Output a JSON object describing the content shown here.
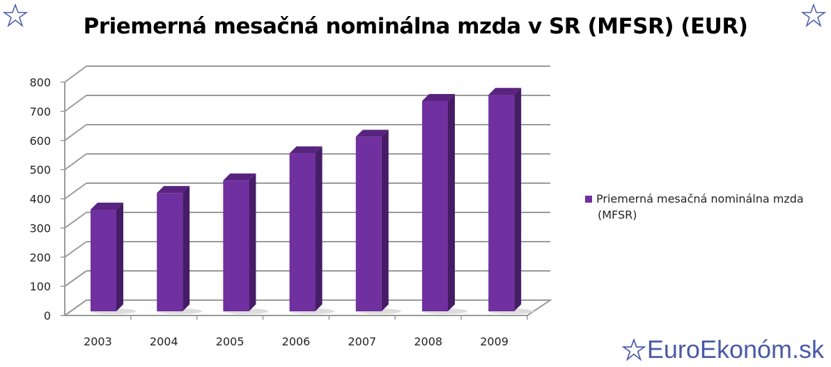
{
  "chart_data": {
    "type": "bar",
    "title": "Priemerná mesačná nominálna mzda v SR (MFSR) (EUR)",
    "categories": [
      "2003",
      "2004",
      "2005",
      "2006",
      "2007",
      "2008",
      "2009"
    ],
    "series": [
      {
        "name": "Priemerná mesačná nominálna mzda (MFSR)",
        "values": [
          349,
          406,
          449,
          542,
          599,
          722,
          743
        ],
        "color": "#7030a0"
      }
    ],
    "ylim": [
      0,
      800
    ],
    "yticks": [
      "0",
      "100",
      "200",
      "300",
      "400",
      "500",
      "600",
      "700",
      "800"
    ],
    "grid": true,
    "style": "3d-column",
    "legend": "right"
  },
  "legend": {
    "line1": "Priemerná mesačná nominálna mzda",
    "line2": "(MFSR)"
  },
  "logo": {
    "text": "EuroEkonóm.sk",
    "color": "#4a5aa8"
  }
}
